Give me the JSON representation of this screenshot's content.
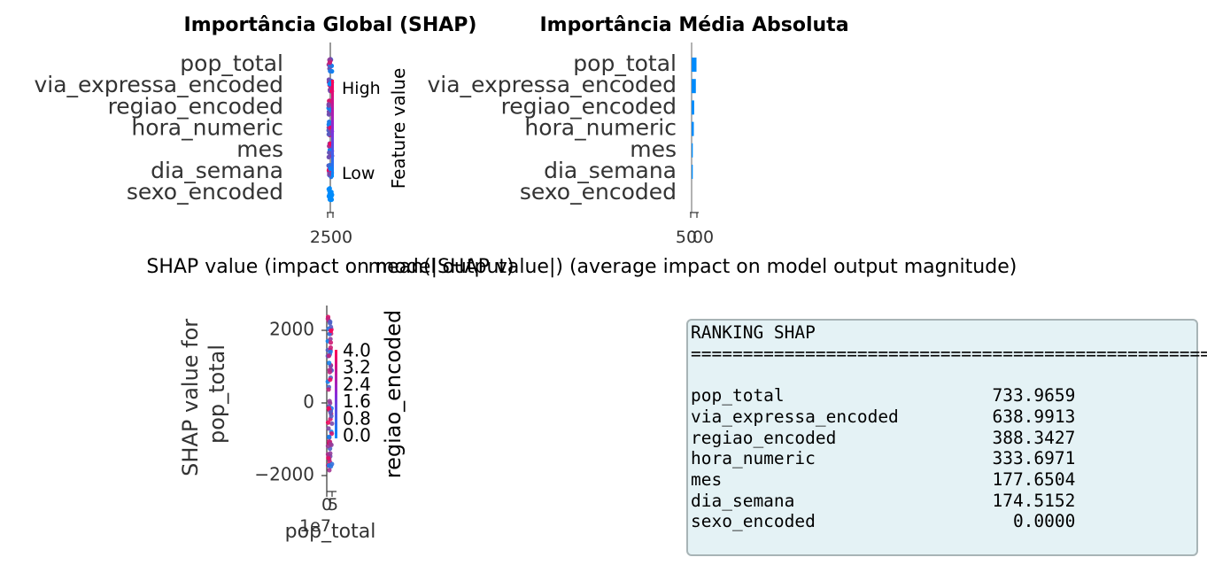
{
  "chart_data": [
    {
      "type": "scatter",
      "chart": "beeswarm",
      "title": "Importância Global (SHAP)",
      "xlabel": "SHAP value (impact on model output)",
      "ylabel": "",
      "features": [
        "pop_total",
        "via_expressa_encoded",
        "regiao_encoded",
        "hora_numeric",
        "mes",
        "dia_semana",
        "sexo_encoded"
      ],
      "xticks": [
        "25",
        "00"
      ],
      "colorbar": {
        "label": "Feature value",
        "high": "High",
        "low": "Low",
        "colors": [
          "#008bfb",
          "#ff0052"
        ]
      },
      "grid": false,
      "legend": "colorbar-right"
    },
    {
      "type": "bar",
      "orientation": "horizontal",
      "title": "Importância Média Absoluta",
      "xlabel": "mean(|SHAP value|) (average impact on model output magnitude)",
      "categories": [
        "pop_total",
        "via_expressa_encoded",
        "regiao_encoded",
        "hora_numeric",
        "mes",
        "dia_semana",
        "sexo_encoded"
      ],
      "values": [
        733.9659,
        638.9913,
        388.3427,
        333.6971,
        177.6504,
        174.5152,
        0.0
      ],
      "xticks": [
        "50",
        "00"
      ],
      "color": "#008bfb",
      "grid": false
    },
    {
      "type": "scatter",
      "chart": "dependence",
      "xlabel": "pop_total",
      "ylabel": "SHAP value for\npop_total",
      "xticks": [
        "0",
        "5"
      ],
      "x_offset_label": "1e7",
      "yticks": [
        2000,
        0,
        -2000
      ],
      "yticks_text": [
        "2000",
        "0",
        "−2000"
      ],
      "ylim": [
        -2200,
        2600
      ],
      "colorbar": {
        "label": "regiao_encoded",
        "ticks": [
          "4.0",
          "3.2",
          "2.4",
          "1.6",
          "0.8",
          "0.0"
        ],
        "colors": [
          "#008bfb",
          "#ff0052"
        ]
      },
      "grid": false
    },
    {
      "type": "table",
      "title": "RANKING SHAP",
      "separator": "==================================================",
      "rows": [
        {
          "feature": "pop_total",
          "value": "733.9659"
        },
        {
          "feature": "via_expressa_encoded",
          "value": "638.9913"
        },
        {
          "feature": "regiao_encoded",
          "value": "388.3427"
        },
        {
          "feature": "hora_numeric",
          "value": "333.6971"
        },
        {
          "feature": "mes",
          "value": "177.6504"
        },
        {
          "feature": "dia_semana",
          "value": "174.5152"
        },
        {
          "feature": "sexo_encoded",
          "value": "0.0000"
        }
      ]
    }
  ]
}
